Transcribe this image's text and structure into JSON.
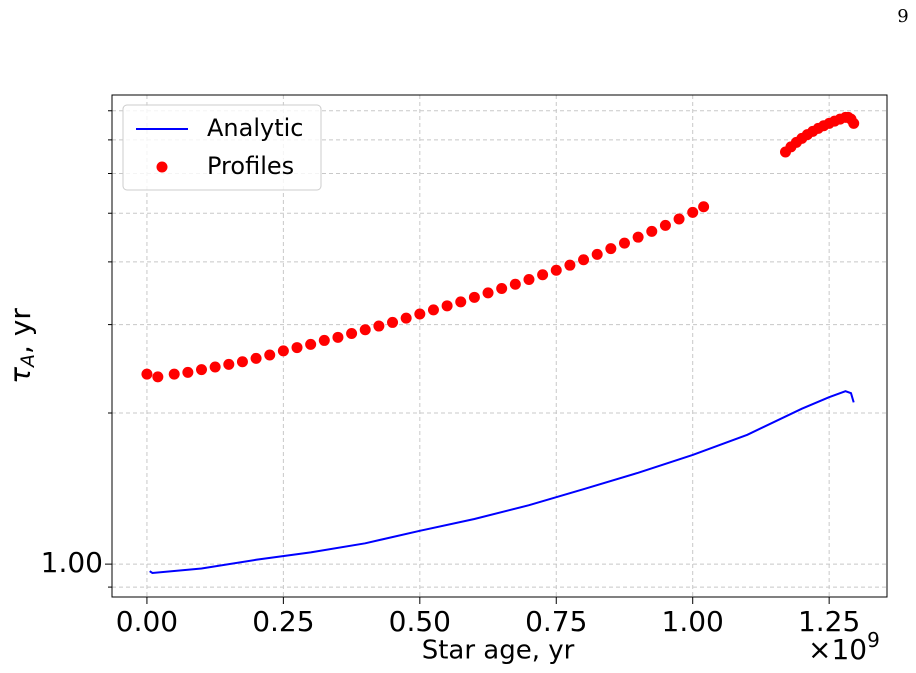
{
  "page_number": "9",
  "chart_data": {
    "type": "line",
    "xlabel": "Star age, yr",
    "x_offset_text": {
      "base": "×10",
      "exponent": "9"
    },
    "ylabel": {
      "main": "τ",
      "sub": "A",
      "rest": ", yr"
    },
    "xlim": [
      -0.064,
      1.356
    ],
    "xticks": [
      {
        "value": 0,
        "label": "0.00"
      },
      0.25,
      {
        "value": 0.5,
        "label": "0.50"
      },
      0.75,
      {
        "value": 1,
        "label": "1.00"
      },
      1.25
    ],
    "ylim": [
      0.86,
      8.6
    ],
    "log_y": true,
    "yticks": [
      {
        "value": 1,
        "label": "1.00"
      }
    ],
    "yticks_minor": [
      0.9,
      2,
      3,
      4,
      5,
      6,
      7,
      8
    ],
    "grid": true,
    "legend": "upper left",
    "series": [
      {
        "name": "Analytic",
        "color": "#0000ff",
        "kind": "line",
        "x": [
          0.005,
          0.01,
          0.1,
          0.2,
          0.3,
          0.4,
          0.5,
          0.6,
          0.7,
          0.8,
          0.9,
          1.0,
          1.1,
          1.2,
          1.25,
          1.28,
          1.29,
          1.295
        ],
        "values": [
          0.968,
          0.96,
          0.98,
          1.02,
          1.055,
          1.1,
          1.165,
          1.23,
          1.31,
          1.41,
          1.52,
          1.65,
          1.81,
          2.04,
          2.15,
          2.21,
          2.19,
          2.1
        ]
      },
      {
        "name": "Profiles",
        "color": "#ff0000",
        "kind": "scatter",
        "x": [
          0,
          0.02,
          0.05,
          0.075,
          0.1,
          0.125,
          0.15,
          0.175,
          0.2,
          0.225,
          0.25,
          0.275,
          0.3,
          0.325,
          0.35,
          0.375,
          0.4,
          0.425,
          0.45,
          0.475,
          0.5,
          0.525,
          0.55,
          0.575,
          0.6,
          0.625,
          0.65,
          0.675,
          0.7,
          0.725,
          0.75,
          0.775,
          0.8,
          0.825,
          0.85,
          0.875,
          0.9,
          0.925,
          0.95,
          0.975,
          1.0,
          1.02,
          1.17,
          1.18,
          1.19,
          1.2,
          1.21,
          1.22,
          1.23,
          1.24,
          1.25,
          1.26,
          1.27,
          1.28,
          1.285,
          1.29,
          1.295
        ],
        "values": [
          2.39,
          2.36,
          2.39,
          2.41,
          2.44,
          2.47,
          2.5,
          2.53,
          2.57,
          2.61,
          2.66,
          2.7,
          2.74,
          2.79,
          2.83,
          2.88,
          2.93,
          2.98,
          3.03,
          3.09,
          3.15,
          3.21,
          3.27,
          3.33,
          3.4,
          3.47,
          3.54,
          3.61,
          3.69,
          3.77,
          3.85,
          3.94,
          4.04,
          4.14,
          4.25,
          4.36,
          4.48,
          4.6,
          4.73,
          4.87,
          5.02,
          5.15,
          6.62,
          6.78,
          6.92,
          7.05,
          7.17,
          7.28,
          7.38,
          7.47,
          7.55,
          7.63,
          7.7,
          7.76,
          7.76,
          7.7,
          7.55
        ]
      }
    ]
  }
}
